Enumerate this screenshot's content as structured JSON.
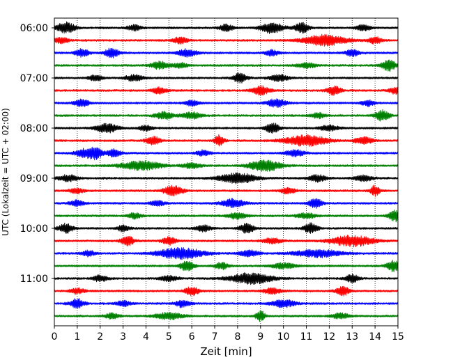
{
  "chart_data": {
    "type": "line",
    "title": "",
    "xlabel": "Zeit  [min]",
    "ylabel": "UTC (Lokalzeit = UTC + 02:00)",
    "xlim": [
      0,
      15
    ],
    "x_ticks": [
      "0",
      "1",
      "2",
      "3",
      "4",
      "5",
      "6",
      "7",
      "8",
      "9",
      "10",
      "11",
      "12",
      "13",
      "14",
      "15"
    ],
    "y_tick_labels": [
      "06:00",
      "07:00",
      "08:00",
      "09:00",
      "10:00",
      "11:00"
    ],
    "grid": "vertical-dotted",
    "trace_interval_min": 15,
    "trace_colors": [
      "#000000",
      "#ff0000",
      "#0000ff",
      "#008000"
    ],
    "trace_start_times": [
      "06:00",
      "06:15",
      "06:30",
      "06:45",
      "07:00",
      "07:15",
      "07:30",
      "07:45",
      "08:00",
      "08:15",
      "08:30",
      "08:45",
      "09:00",
      "09:15",
      "09:30",
      "09:45",
      "10:00",
      "10:15",
      "10:30",
      "10:45",
      "11:00",
      "11:15",
      "11:30",
      "11:45"
    ],
    "bursts": [
      [
        [
          0.5,
          0.4,
          1.0
        ],
        [
          9.5,
          0.5,
          1.0
        ],
        [
          10.8,
          0.3,
          0.9
        ],
        [
          3.5,
          0.3,
          0.5
        ],
        [
          7.5,
          0.3,
          0.6
        ],
        [
          13.5,
          0.3,
          0.5
        ]
      ],
      [
        [
          11.8,
          0.9,
          1.0
        ],
        [
          5.5,
          0.3,
          0.6
        ],
        [
          0.3,
          0.3,
          0.5
        ],
        [
          14.0,
          0.3,
          0.6
        ]
      ],
      [
        [
          1.2,
          0.3,
          0.7
        ],
        [
          2.5,
          0.3,
          0.9
        ],
        [
          5.8,
          0.4,
          0.7
        ],
        [
          9.5,
          0.3,
          0.5
        ],
        [
          13.0,
          0.3,
          0.6
        ]
      ],
      [
        [
          4.6,
          0.4,
          0.7
        ],
        [
          5.5,
          0.3,
          0.5
        ],
        [
          14.6,
          0.3,
          1.0
        ],
        [
          11.0,
          0.4,
          0.5
        ]
      ],
      [
        [
          8.1,
          0.3,
          0.9
        ],
        [
          1.8,
          0.3,
          0.5
        ],
        [
          3.5,
          0.4,
          0.6
        ],
        [
          9.8,
          0.4,
          0.6
        ]
      ],
      [
        [
          9.0,
          0.4,
          0.8
        ],
        [
          4.6,
          0.3,
          0.6
        ],
        [
          12.2,
          0.3,
          0.8
        ],
        [
          14.9,
          0.3,
          0.6
        ]
      ],
      [
        [
          1.2,
          0.3,
          0.7
        ],
        [
          9.7,
          0.4,
          0.8
        ],
        [
          13.7,
          0.3,
          0.5
        ],
        [
          6.0,
          0.3,
          0.5
        ]
      ],
      [
        [
          4.8,
          0.4,
          0.7
        ],
        [
          6.0,
          0.4,
          0.6
        ],
        [
          14.3,
          0.3,
          1.0
        ],
        [
          11.5,
          0.3,
          0.5
        ]
      ],
      [
        [
          2.3,
          0.5,
          0.8
        ],
        [
          9.5,
          0.3,
          1.0
        ],
        [
          4.0,
          0.3,
          0.5
        ],
        [
          12.0,
          0.4,
          0.5
        ]
      ],
      [
        [
          4.3,
          0.3,
          0.8
        ],
        [
          7.2,
          0.2,
          1.0
        ],
        [
          11.0,
          0.9,
          1.0
        ],
        [
          13.5,
          0.4,
          0.6
        ]
      ],
      [
        [
          1.8,
          0.3,
          1.0
        ],
        [
          1.3,
          0.4,
          0.7
        ],
        [
          2.6,
          0.3,
          0.7
        ],
        [
          6.5,
          0.3,
          0.5
        ],
        [
          10.5,
          0.4,
          0.6
        ]
      ],
      [
        [
          3.8,
          0.9,
          0.8
        ],
        [
          9.2,
          0.7,
          1.0
        ],
        [
          6.0,
          0.4,
          0.5
        ]
      ],
      [
        [
          0.6,
          0.4,
          0.6
        ],
        [
          8.0,
          0.8,
          0.9
        ],
        [
          11.5,
          0.4,
          0.6
        ],
        [
          13.5,
          0.4,
          0.5
        ]
      ],
      [
        [
          5.2,
          0.4,
          1.0
        ],
        [
          14.0,
          0.2,
          1.0
        ],
        [
          10.2,
          0.3,
          0.6
        ],
        [
          1.0,
          0.3,
          0.5
        ]
      ],
      [
        [
          7.8,
          0.5,
          0.8
        ],
        [
          11.4,
          0.3,
          0.8
        ],
        [
          1.0,
          0.3,
          0.6
        ],
        [
          4.5,
          0.3,
          0.5
        ]
      ],
      [
        [
          8.0,
          0.4,
          0.6
        ],
        [
          14.9,
          0.3,
          1.0
        ],
        [
          3.5,
          0.3,
          0.5
        ],
        [
          11.0,
          0.4,
          0.5
        ]
      ],
      [
        [
          0.5,
          0.3,
          0.9
        ],
        [
          8.4,
          0.3,
          0.9
        ],
        [
          11.2,
          0.3,
          0.9
        ],
        [
          6.5,
          0.3,
          0.6
        ],
        [
          3.0,
          0.3,
          0.5
        ]
      ],
      [
        [
          13.0,
          0.9,
          1.0
        ],
        [
          3.2,
          0.3,
          0.8
        ],
        [
          5.0,
          0.3,
          0.7
        ],
        [
          9.5,
          0.4,
          0.5
        ]
      ],
      [
        [
          5.5,
          1.0,
          1.0
        ],
        [
          11.5,
          1.0,
          0.7
        ],
        [
          8.5,
          0.4,
          0.6
        ],
        [
          1.5,
          0.3,
          0.5
        ]
      ],
      [
        [
          5.8,
          0.3,
          0.9
        ],
        [
          7.3,
          0.3,
          0.6
        ],
        [
          14.8,
          0.3,
          1.0
        ],
        [
          10.0,
          0.5,
          0.5
        ]
      ],
      [
        [
          8.6,
          0.9,
          1.0
        ],
        [
          2.0,
          0.3,
          0.6
        ],
        [
          13.0,
          0.3,
          0.7
        ],
        [
          5.0,
          0.4,
          0.5
        ]
      ],
      [
        [
          6.0,
          0.3,
          0.8
        ],
        [
          12.6,
          0.3,
          0.8
        ],
        [
          9.5,
          0.4,
          0.5
        ],
        [
          1.0,
          0.3,
          0.5
        ]
      ],
      [
        [
          1.0,
          0.3,
          0.9
        ],
        [
          5.6,
          0.3,
          0.7
        ],
        [
          10.0,
          0.5,
          0.7
        ],
        [
          3.0,
          0.3,
          0.5
        ]
      ],
      [
        [
          9.0,
          0.2,
          1.0
        ],
        [
          5.0,
          0.6,
          0.6
        ],
        [
          12.5,
          0.4,
          0.5
        ],
        [
          2.5,
          0.3,
          0.5
        ]
      ]
    ]
  }
}
